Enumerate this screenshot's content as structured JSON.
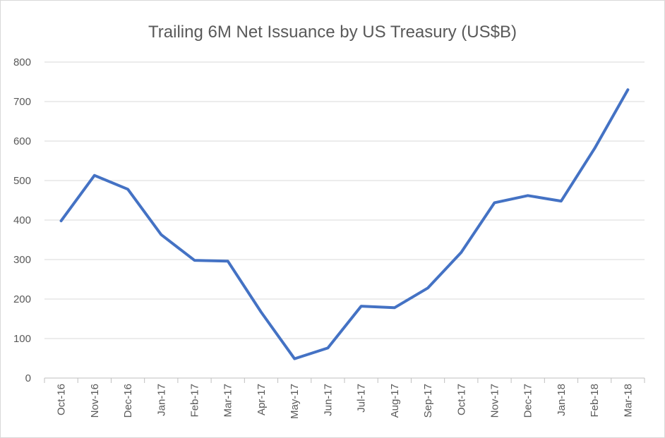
{
  "chart_data": {
    "type": "line",
    "title": "Trailing 6M Net Issuance by US Treasury (US$B)",
    "xlabel": "",
    "ylabel": "",
    "ylim": [
      0,
      800
    ],
    "yticks": [
      0,
      100,
      200,
      300,
      400,
      500,
      600,
      700,
      800
    ],
    "grid": true,
    "legend": "none",
    "categories": [
      "Oct-16",
      "Nov-16",
      "Dec-16",
      "Jan-17",
      "Feb-17",
      "Mar-17",
      "Apr-17",
      "May-17",
      "Jun-17",
      "Jul-17",
      "Aug-17",
      "Sep-17",
      "Oct-17",
      "Nov-17",
      "Dec-17",
      "Jan-18",
      "Feb-18",
      "Mar-18"
    ],
    "series": [
      {
        "color": "#4472c4",
        "values": [
          398,
          513,
          478,
          363,
          298,
          296,
          167,
          49,
          76,
          182,
          178,
          228,
          318,
          444,
          462,
          448,
          581,
          730
        ]
      }
    ]
  }
}
